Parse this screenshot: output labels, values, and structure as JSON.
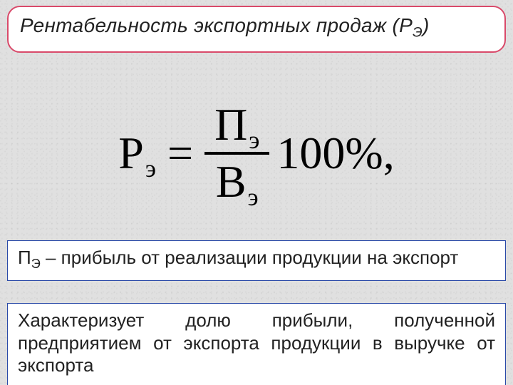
{
  "colors": {
    "background": "#e0e0e0",
    "title_border": "#d94a6a",
    "box_border": "#2a4aa8",
    "box_bg": "#ffffff",
    "text": "#222222",
    "formula_color": "#000000"
  },
  "typography": {
    "body_font": "Century Gothic",
    "formula_font": "Times New Roman",
    "title_fontsize_pt": 21,
    "body_fontsize_pt": 20,
    "formula_fontsize_pt": 48
  },
  "title": {
    "prefix": "Рентабельность экспортных продаж (",
    "symbol_main": "Р",
    "symbol_sub": "Э",
    "suffix": ")"
  },
  "formula": {
    "lhs_main": "Р",
    "lhs_sub": "э",
    "eq": "=",
    "num_main": "П",
    "num_sub": "э",
    "den_main": "В",
    "den_sub": "э",
    "factor": "100",
    "unit": "%",
    "trail": ","
  },
  "definition": {
    "var_main": "П",
    "var_sub": "Э",
    "text_rest": " – прибыль от реализации продукции на экспорт"
  },
  "description": {
    "text": "Характеризует долю прибыли, полученной предприятием от экспорта продукции в выручке от экспорта"
  }
}
